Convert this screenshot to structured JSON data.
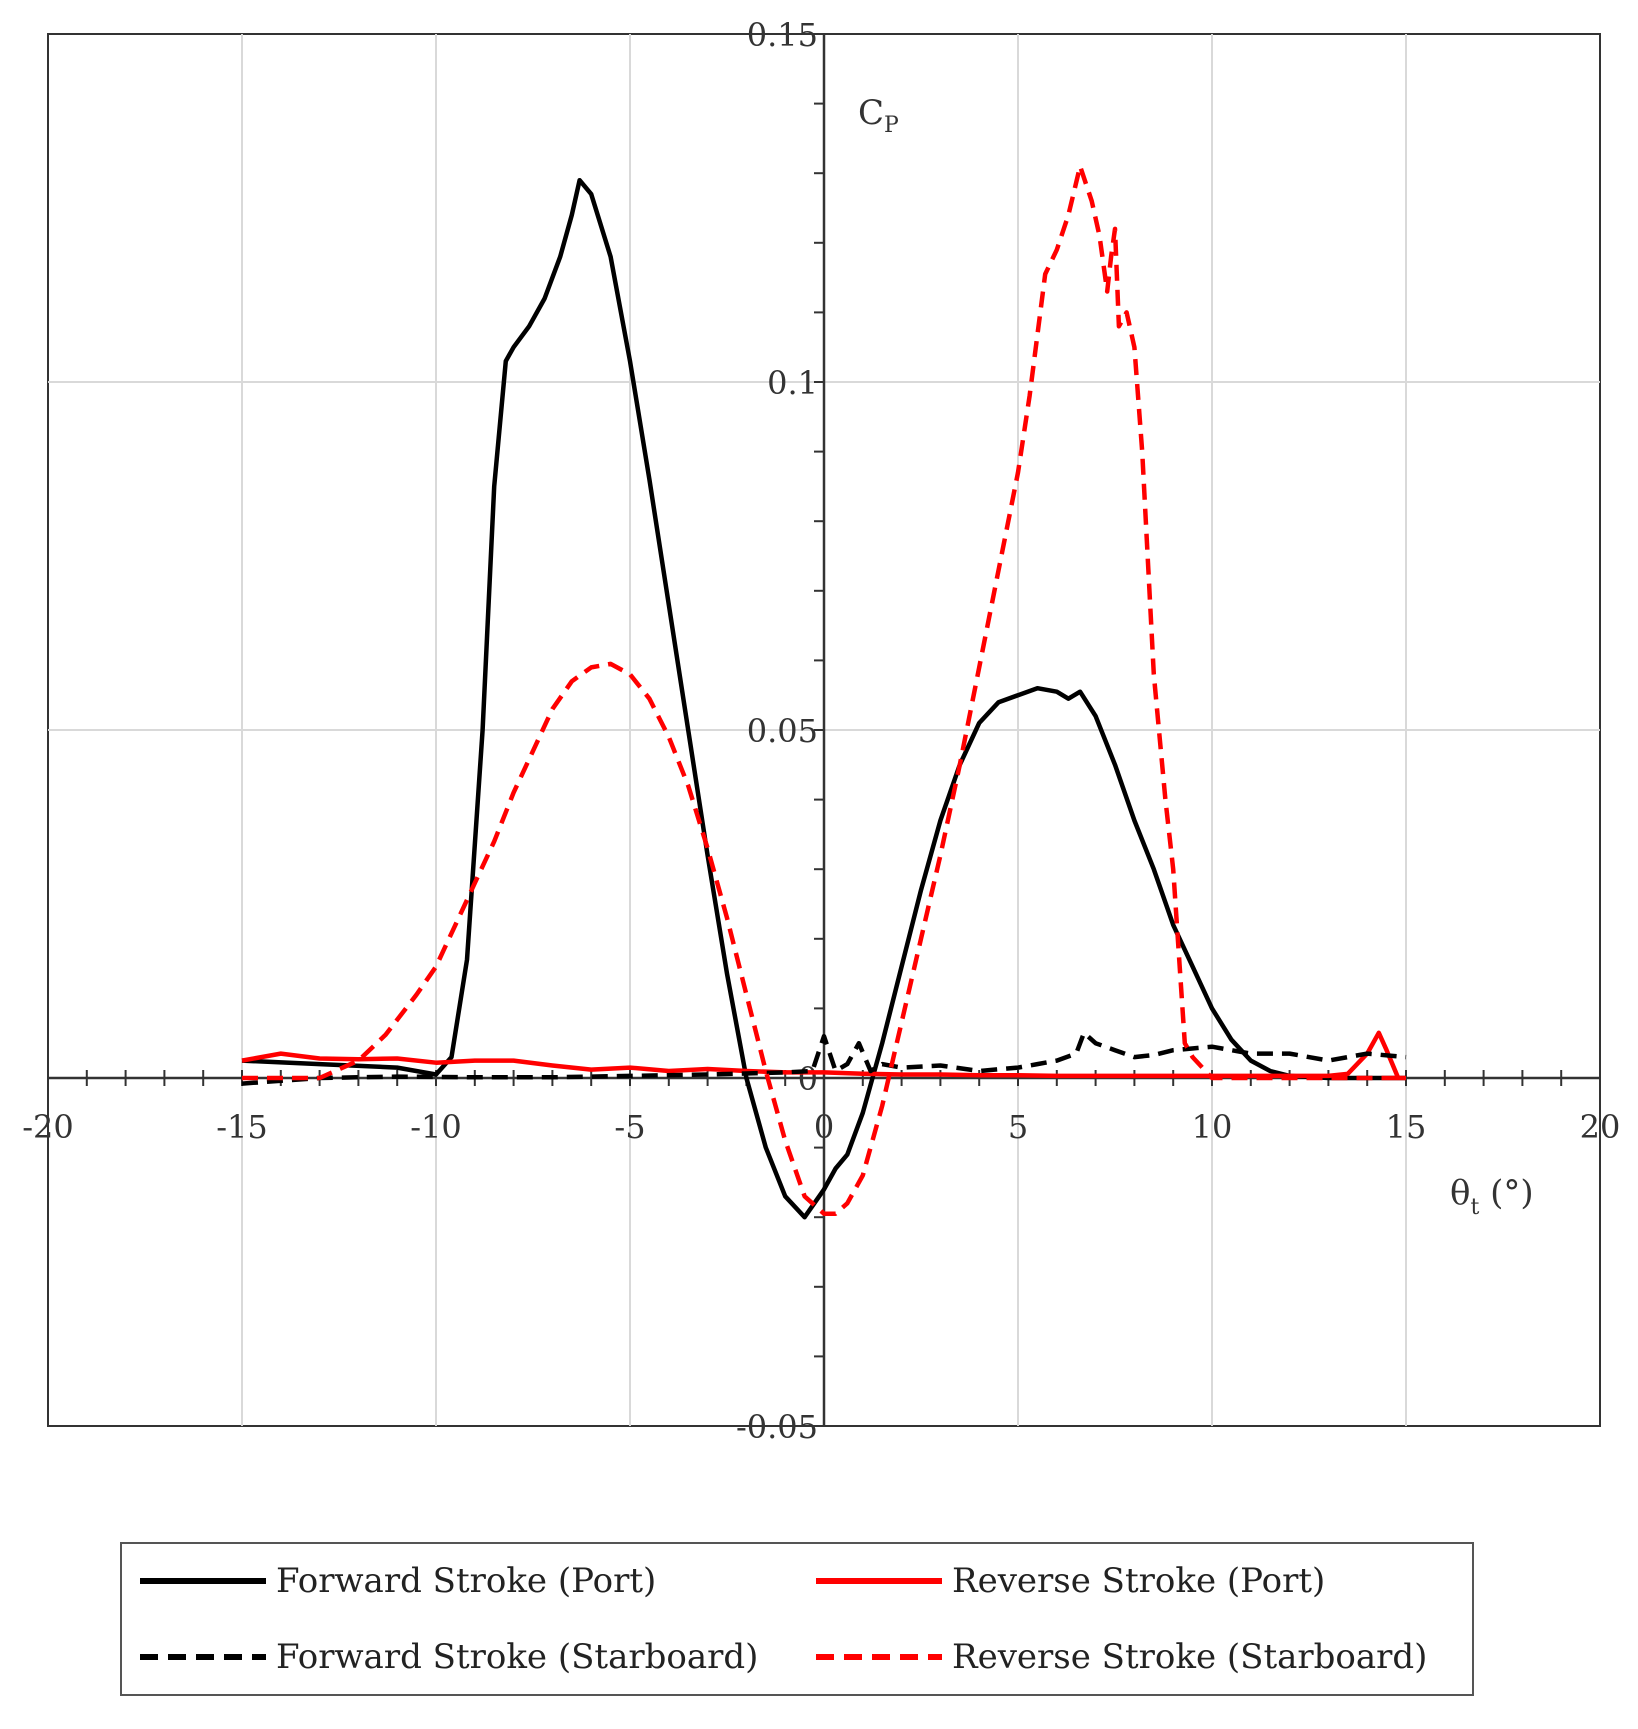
{
  "chart_data": {
    "type": "line",
    "xlim": [
      -20,
      20
    ],
    "ylim": [
      -0.05,
      0.15
    ],
    "x_ticks": [
      "-20",
      "-15",
      "-10",
      "-5",
      "0",
      "5",
      "10",
      "15",
      "20"
    ],
    "y_ticks": [
      "-0.05",
      "0",
      "0.05",
      "0.1",
      "0.15"
    ],
    "x_tick_values": [
      -20,
      -15,
      -10,
      -5,
      0,
      5,
      10,
      15,
      20
    ],
    "y_tick_values": [
      -0.05,
      0,
      0.05,
      0.1,
      0.15
    ],
    "xlabel": {
      "main": "θ",
      "sub": "t",
      "unit": " (°)"
    },
    "ylabel": {
      "main": "C",
      "sub": "P"
    },
    "grid": true,
    "legend_position": "bottom",
    "series": [
      {
        "name": "Forward Stroke (Port)",
        "color": "#000000",
        "dash": "solid",
        "x": [
          -15,
          -13,
          -11,
          -10,
          -9.6,
          -9.2,
          -8.8,
          -8.5,
          -8.2,
          -8.0,
          -7.6,
          -7.2,
          -6.8,
          -6.5,
          -6.3,
          -6.0,
          -5.5,
          -5.0,
          -4.5,
          -4.0,
          -3.5,
          -3.0,
          -2.5,
          -2.0,
          -1.5,
          -1.0,
          -0.5,
          0.0,
          0.3,
          0.6,
          1.0,
          1.5,
          2.0,
          2.5,
          3.0,
          3.5,
          4.0,
          4.5,
          5.0,
          5.5,
          6.0,
          6.3,
          6.6,
          7.0,
          7.5,
          8.0,
          8.5,
          9.0,
          9.5,
          10.0,
          10.5,
          11.0,
          11.5,
          12.0,
          13.0,
          15.0
        ],
        "y": [
          0.0025,
          0.002,
          0.0015,
          0.0005,
          0.003,
          0.017,
          0.05,
          0.085,
          0.103,
          0.105,
          0.108,
          0.112,
          0.118,
          0.124,
          0.129,
          0.127,
          0.118,
          0.103,
          0.086,
          0.068,
          0.05,
          0.032,
          0.015,
          0.0,
          -0.01,
          -0.017,
          -0.02,
          -0.016,
          -0.013,
          -0.011,
          -0.005,
          0.005,
          0.016,
          0.027,
          0.037,
          0.045,
          0.051,
          0.054,
          0.055,
          0.056,
          0.0555,
          0.0545,
          0.0555,
          0.052,
          0.045,
          0.037,
          0.03,
          0.022,
          0.016,
          0.01,
          0.0055,
          0.0025,
          0.001,
          0.0003,
          0.0,
          0.0
        ]
      },
      {
        "name": "Reverse Stroke (Port)",
        "color": "#ff0000",
        "dash": "solid",
        "x": [
          -15,
          -14,
          -13,
          -12,
          -11,
          -10,
          -9,
          -8,
          -7,
          -6,
          -5,
          -4,
          -3,
          -2,
          -1,
          0,
          1,
          2,
          3,
          4,
          5,
          6,
          7,
          8,
          9,
          10,
          11,
          12,
          13,
          13.5,
          14,
          14.3,
          14.5,
          14.8,
          15.0
        ],
        "y": [
          0.0025,
          0.0035,
          0.0028,
          0.0027,
          0.0028,
          0.0022,
          0.0025,
          0.0025,
          0.0018,
          0.0012,
          0.0015,
          0.001,
          0.0013,
          0.001,
          0.0008,
          0.0008,
          0.0006,
          0.0005,
          0.0005,
          0.0004,
          0.0004,
          0.0003,
          0.0003,
          0.0003,
          0.0003,
          0.0003,
          0.0003,
          0.0003,
          0.0003,
          0.0006,
          0.0035,
          0.0065,
          0.004,
          0.0,
          0.0
        ]
      },
      {
        "name": "Forward Stroke (Starboard)",
        "color": "#000000",
        "dash": "dashed",
        "x": [
          -15,
          -13,
          -11,
          -9,
          -7,
          -5,
          -3,
          -1,
          -0.3,
          0.0,
          0.3,
          0.6,
          0.9,
          1.2,
          1.5,
          2.0,
          3.0,
          4.0,
          5.0,
          5.5,
          6.0,
          6.5,
          6.7,
          7.0,
          7.5,
          8.0,
          8.5,
          9.0,
          10.0,
          11.0,
          12.0,
          13.0,
          14.0,
          15.0
        ],
        "y": [
          -0.0008,
          0.0,
          0.0002,
          0.0001,
          0.0001,
          0.0003,
          0.0005,
          0.0008,
          0.001,
          0.006,
          0.001,
          0.002,
          0.005,
          0.001,
          0.002,
          0.0015,
          0.0018,
          0.001,
          0.0015,
          0.002,
          0.0025,
          0.0035,
          0.0065,
          0.005,
          0.004,
          0.003,
          0.0033,
          0.004,
          0.0045,
          0.0035,
          0.0035,
          0.0025,
          0.0035,
          0.003
        ]
      },
      {
        "name": "Reverse Stroke (Starboard)",
        "color": "#ff0000",
        "dash": "dashed",
        "x": [
          -15,
          -13,
          -12,
          -11.3,
          -10.5,
          -10,
          -9.5,
          -9,
          -8.5,
          -8,
          -7.5,
          -7,
          -6.5,
          -6,
          -5.5,
          -5,
          -4.5,
          -4,
          -3.5,
          -3,
          -2.5,
          -2,
          -1.5,
          -1,
          -0.5,
          0.0,
          0.3,
          0.6,
          1.0,
          1.5,
          2.0,
          2.5,
          3.0,
          3.5,
          4.0,
          4.5,
          5.0,
          5.3,
          5.7,
          6.0,
          6.3,
          6.6,
          6.9,
          7.1,
          7.3,
          7.4,
          7.5,
          7.6,
          7.8,
          8.0,
          8.2,
          8.5,
          8.8,
          9.0,
          9.3,
          9.5,
          10.0,
          15.0
        ],
        "y": [
          0.0,
          0.0,
          0.0025,
          0.0062,
          0.012,
          0.016,
          0.022,
          0.028,
          0.034,
          0.041,
          0.047,
          0.053,
          0.057,
          0.059,
          0.0595,
          0.058,
          0.0545,
          0.049,
          0.042,
          0.033,
          0.023,
          0.012,
          0.001,
          -0.009,
          -0.017,
          -0.0195,
          -0.0195,
          -0.018,
          -0.014,
          -0.004,
          0.008,
          0.02,
          0.032,
          0.045,
          0.059,
          0.073,
          0.087,
          0.098,
          0.1155,
          0.119,
          0.124,
          0.131,
          0.126,
          0.121,
          0.113,
          0.118,
          0.122,
          0.108,
          0.11,
          0.105,
          0.09,
          0.058,
          0.04,
          0.03,
          0.005,
          0.003,
          0.0,
          0.0
        ]
      }
    ]
  }
}
